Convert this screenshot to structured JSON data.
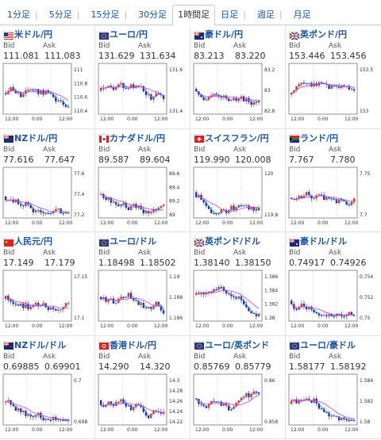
{
  "tabs": [
    {
      "label": "1分足",
      "active": false
    },
    {
      "label": "5分足",
      "active": false
    },
    {
      "label": "15分足",
      "active": false
    },
    {
      "label": "30分足",
      "active": false
    },
    {
      "label": "1時間足",
      "active": true
    },
    {
      "label": "日足",
      "active": false
    },
    {
      "label": "週足",
      "active": false
    },
    {
      "label": "月足",
      "active": false
    }
  ],
  "quotes": [
    {
      "name": "米ドル/円",
      "bid_label": "Bid",
      "ask_label": "Ask",
      "bid": "111.081",
      "ask": "111.083",
      "flag": "us-flag-icon",
      "y_ticks": [
        "111",
        "110.8",
        "110.6",
        "110.4"
      ],
      "x_ticks": [
        "12:00",
        "0:00",
        "12:00"
      ]
    },
    {
      "name": "ユーロ/円",
      "bid_label": "Bid",
      "ask_label": "Ask",
      "bid": "131.629",
      "ask": "131.634",
      "flag": "eu-flag-icon",
      "y_ticks": [
        "131.6",
        "131.4"
      ],
      "x_ticks": [
        "12:00",
        "0:00",
        "12:00"
      ]
    },
    {
      "name": "豪ドル/円",
      "bid_label": "Bid",
      "ask_label": "Ask",
      "bid": "83.213",
      "ask": "83.220",
      "flag": "au-flag-icon",
      "y_ticks": [
        "83.2",
        "83",
        "82.8"
      ],
      "x_ticks": [
        "12:00",
        "0:00",
        "12:00"
      ]
    },
    {
      "name": "英ポンド/円",
      "bid_label": "Bid",
      "ask_label": "Ask",
      "bid": "153.446",
      "ask": "153.456",
      "flag": "gb-flag-icon",
      "y_ticks": [
        "153.5",
        "153"
      ],
      "x_ticks": [
        "12:00",
        "0:00",
        "12:00"
      ]
    },
    {
      "name": "NZドル/円",
      "bid_label": "Bid",
      "ask_label": "Ask",
      "bid": "77.616",
      "ask": "77.647",
      "flag": "nz-flag-icon",
      "y_ticks": [
        "77.6",
        "77.4",
        "77.2"
      ],
      "x_ticks": [
        "12:00",
        "0:00",
        "12:00"
      ]
    },
    {
      "name": "カナダドル/円",
      "bid_label": "Bid",
      "ask_label": "Ask",
      "bid": "89.587",
      "ask": "89.604",
      "flag": "ca-flag-icon",
      "y_ticks": [
        "89.6",
        "89.4",
        "89.2",
        "89"
      ],
      "x_ticks": [
        "12:00",
        "0:00",
        "12:00"
      ]
    },
    {
      "name": "スイスフラン/円",
      "bid_label": "Bid",
      "ask_label": "Ask",
      "bid": "119.990",
      "ask": "120.008",
      "flag": "ch-flag-icon",
      "y_ticks": [
        "120",
        "119.8"
      ],
      "x_ticks": [
        "12:00",
        "0:00",
        "12:00"
      ]
    },
    {
      "name": "ランド/円",
      "bid_label": "Bid",
      "ask_label": "Ask",
      "bid": "7.767",
      "ask": "7.780",
      "flag": "za-flag-icon",
      "y_ticks": [
        "7.75",
        "7.7"
      ],
      "x_ticks": [
        "12:00",
        "0:00",
        "12:00"
      ]
    },
    {
      "name": "人民元/円",
      "bid_label": "Bid",
      "ask_label": "Ask",
      "bid": "17.149",
      "ask": "17.179",
      "flag": "cn-flag-icon",
      "y_ticks": [
        "17.15",
        "17.1"
      ],
      "x_ticks": [
        "12:00",
        "0:00",
        "12:00"
      ]
    },
    {
      "name": "ユーロ/ドル",
      "bid_label": "Bid",
      "ask_label": "Ask",
      "bid": "1.18498",
      "ask": "1.18502",
      "flag": "eu-flag-icon",
      "y_ticks": [
        "1.19",
        "1.188",
        "1.186"
      ],
      "x_ticks": [
        "12:00",
        "0:00",
        "12:00"
      ]
    },
    {
      "name": "英ポンド/ドル",
      "bid_label": "Bid",
      "ask_label": "Ask",
      "bid": "1.38140",
      "ask": "1.38150",
      "flag": "gb-flag-icon",
      "y_ticks": [
        "1.386",
        "1.384",
        "1.382",
        "1.38"
      ],
      "x_ticks": [
        "12:00",
        "0:00",
        "12:00"
      ]
    },
    {
      "name": "豪ドル/ドル",
      "bid_label": "Bid",
      "ask_label": "Ask",
      "bid": "0.74917",
      "ask": "0.74926",
      "flag": "au-flag-icon",
      "y_ticks": [
        "0.754",
        "0.752",
        "0.75"
      ],
      "x_ticks": [
        "12:00",
        "0:00",
        "12:00"
      ]
    },
    {
      "name": "NZドル/ドル",
      "bid_label": "Bid",
      "ask_label": "Ask",
      "bid": "0.69885",
      "ask": "0.69901",
      "flag": "nz-flag-icon",
      "y_ticks": [
        "0.7",
        "0.698"
      ],
      "x_ticks": [
        "12:00",
        "0:00",
        "12:00"
      ]
    },
    {
      "name": "香港ドル/円",
      "bid_label": "Bid",
      "ask_label": "Ask",
      "bid": "14.290",
      "ask": "14.320",
      "flag": "hk-flag-icon",
      "y_ticks": [
        "14.3",
        "14.28",
        "14.26",
        "14.24",
        "14.22"
      ],
      "x_ticks": [
        "12:00",
        "0:00",
        "12:00"
      ]
    },
    {
      "name": "ユーロ/英ポンド",
      "bid_label": "Bid",
      "ask_label": "Ask",
      "bid": "0.85769",
      "ask": "0.85779",
      "flag": "eu-flag-icon",
      "y_ticks": [
        "0.86",
        "0.858"
      ],
      "x_ticks": [
        "12:00",
        "0:00",
        "12:00"
      ]
    },
    {
      "name": "ユーロ/豪ドル",
      "bid_label": "Bid",
      "ask_label": "Ask",
      "bid": "1.58177",
      "ask": "1.58192",
      "flag": "eu-flag-icon",
      "y_ticks": [
        "1.584",
        "1.582",
        "1.58"
      ],
      "x_ticks": [
        "12:00",
        "0:00",
        "12:00"
      ]
    }
  ],
  "colors": {
    "link": "#1a55a8",
    "up": "#e8302e",
    "down": "#1f2fb0",
    "ma_short": "#2a9fd6",
    "ma_long": "#d63ad6"
  }
}
